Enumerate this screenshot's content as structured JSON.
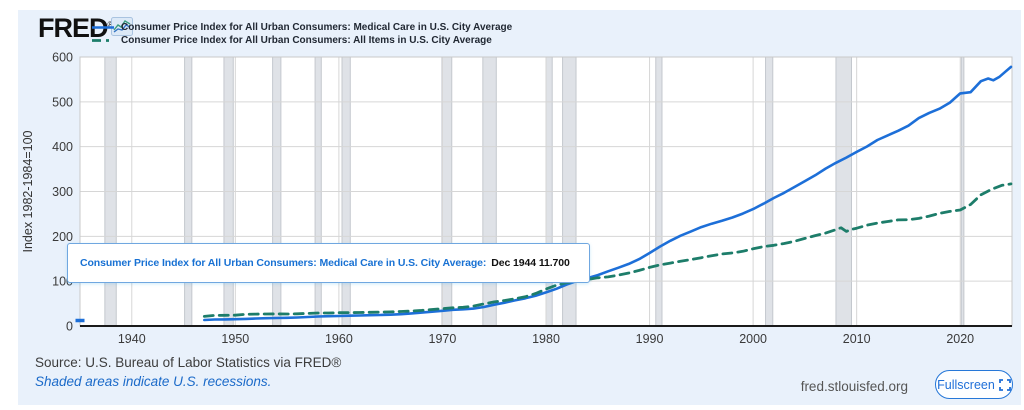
{
  "header": {
    "logo_text": "FRED",
    "logo_registered": "®",
    "legend": [
      {
        "label": "Consumer Price Index for All Urban Consumers: Medical Care in U.S. City Average",
        "color": "#1d6fd8",
        "style": "solid"
      },
      {
        "label": "Consumer Price Index for All Urban Consumers: All Items in U.S. City Average",
        "color": "#1d7d6a",
        "style": "dashed"
      }
    ]
  },
  "tooltip": {
    "series_label": "Consumer Price Index for All Urban Consumers: Medical Care in U.S. City Average:",
    "value_text": "Dec 1944 11.700"
  },
  "footer": {
    "source": "Source: U.S. Bureau of Labor Statistics via FRED®",
    "recession_note": "Shaded areas indicate U.S. recessions.",
    "site": "fred.stlouisfed.org",
    "fullscreen_label": "Fullscreen"
  },
  "colors": {
    "panel_bg": "#e9f1fb",
    "plot_bg": "#ffffff",
    "grid": "#d6d6d6",
    "plot_border": "#c9c9c9",
    "recession_band": "#dfe2e7",
    "recession_edge": "#c4c8ce",
    "axis": "#1a1a1a",
    "tick_text": "#3a3a3a",
    "medical_line": "#1d6fd8",
    "all_items_line": "#1d7d6a"
  },
  "chart_data": {
    "type": "line",
    "title": "",
    "xlabel": "",
    "ylabel": "Index 1982-1984=100",
    "xlim": [
      1935,
      2025
    ],
    "ylim": [
      0,
      600
    ],
    "xticks": [
      1940,
      1950,
      1960,
      1970,
      1980,
      1990,
      2000,
      2010,
      2020
    ],
    "yticks": [
      0,
      100,
      200,
      300,
      400,
      500,
      600
    ],
    "grid": true,
    "legend_position": "top-left",
    "hover_marker": {
      "x": 1935,
      "y": 11.7
    },
    "recessions": [
      [
        1937.4,
        1938.5
      ],
      [
        1945.1,
        1945.8
      ],
      [
        1948.9,
        1949.8
      ],
      [
        1953.6,
        1954.4
      ],
      [
        1957.7,
        1958.3
      ],
      [
        1960.3,
        1961.1
      ],
      [
        1969.95,
        1970.9
      ],
      [
        1973.9,
        1975.2
      ],
      [
        1980.0,
        1980.6
      ],
      [
        1981.6,
        1982.9
      ],
      [
        1990.6,
        1991.2
      ],
      [
        2001.2,
        2001.9
      ],
      [
        2008.0,
        2009.5
      ],
      [
        2020.1,
        2020.35
      ]
    ],
    "series": [
      {
        "name": "Consumer Price Index for All Urban Consumers: Medical Care in U.S. City Average",
        "color": "#1d6fd8",
        "dash": null,
        "points": [
          [
            1947,
            13.3
          ],
          [
            1948,
            14.4
          ],
          [
            1949,
            14.8
          ],
          [
            1950,
            15.1
          ],
          [
            1951,
            15.9
          ],
          [
            1952,
            16.7
          ],
          [
            1953,
            17.3
          ],
          [
            1954,
            17.8
          ],
          [
            1955,
            18.2
          ],
          [
            1956,
            18.9
          ],
          [
            1957,
            20.0
          ],
          [
            1958,
            21.1
          ],
          [
            1959,
            21.9
          ],
          [
            1960,
            22.3
          ],
          [
            1961,
            22.9
          ],
          [
            1962,
            23.5
          ],
          [
            1963,
            24.1
          ],
          [
            1964,
            24.6
          ],
          [
            1965,
            25.2
          ],
          [
            1966,
            26.3
          ],
          [
            1967,
            28.2
          ],
          [
            1968,
            29.9
          ],
          [
            1969,
            31.9
          ],
          [
            1970,
            34.0
          ],
          [
            1971,
            36.1
          ],
          [
            1972,
            37.3
          ],
          [
            1973,
            38.8
          ],
          [
            1974,
            42.4
          ],
          [
            1975,
            47.5
          ],
          [
            1976,
            52.0
          ],
          [
            1977,
            57.0
          ],
          [
            1978,
            61.8
          ],
          [
            1979,
            67.5
          ],
          [
            1980,
            74.9
          ],
          [
            1981,
            82.9
          ],
          [
            1982,
            92.5
          ],
          [
            1983,
            100.6
          ],
          [
            1984,
            106.8
          ],
          [
            1985,
            113.5
          ],
          [
            1986,
            122.0
          ],
          [
            1987,
            130.1
          ],
          [
            1988,
            138.6
          ],
          [
            1989,
            149.3
          ],
          [
            1990,
            162.8
          ],
          [
            1991,
            177.0
          ],
          [
            1992,
            190.1
          ],
          [
            1993,
            201.4
          ],
          [
            1994,
            211.0
          ],
          [
            1995,
            220.5
          ],
          [
            1996,
            228.2
          ],
          [
            1997,
            234.6
          ],
          [
            1998,
            242.1
          ],
          [
            1999,
            250.6
          ],
          [
            2000,
            260.8
          ],
          [
            2001,
            272.8
          ],
          [
            2002,
            285.6
          ],
          [
            2003,
            297.1
          ],
          [
            2004,
            310.1
          ],
          [
            2005,
            323.2
          ],
          [
            2006,
            336.2
          ],
          [
            2007,
            351.1
          ],
          [
            2008,
            364.1
          ],
          [
            2009,
            375.6
          ],
          [
            2010,
            388.4
          ],
          [
            2011,
            400.3
          ],
          [
            2012,
            414.9
          ],
          [
            2013,
            425.1
          ],
          [
            2014,
            435.3
          ],
          [
            2015,
            446.8
          ],
          [
            2016,
            463.7
          ],
          [
            2017,
            475.3
          ],
          [
            2018,
            484.7
          ],
          [
            2019,
            498.4
          ],
          [
            2020,
            518.9
          ],
          [
            2021,
            521.5
          ],
          [
            2022,
            546.0
          ],
          [
            2022.7,
            552.0
          ],
          [
            2023.2,
            548.0
          ],
          [
            2023.8,
            556.0
          ],
          [
            2024.3,
            566.0
          ],
          [
            2024.9,
            578.0
          ]
        ]
      },
      {
        "name": "Consumer Price Index for All Urban Consumers: All Items in U.S. City Average",
        "color": "#1d7d6a",
        "dash": "9 6",
        "points": [
          [
            1947,
            21.5
          ],
          [
            1948,
            23.7
          ],
          [
            1949,
            23.8
          ],
          [
            1950,
            24.1
          ],
          [
            1951,
            26.0
          ],
          [
            1952,
            26.5
          ],
          [
            1953,
            26.7
          ],
          [
            1954,
            26.9
          ],
          [
            1955,
            26.8
          ],
          [
            1956,
            27.2
          ],
          [
            1957,
            28.1
          ],
          [
            1958,
            28.9
          ],
          [
            1959,
            29.1
          ],
          [
            1960,
            29.6
          ],
          [
            1961,
            29.9
          ],
          [
            1962,
            30.2
          ],
          [
            1963,
            30.6
          ],
          [
            1964,
            31.0
          ],
          [
            1965,
            31.5
          ],
          [
            1966,
            32.4
          ],
          [
            1967,
            33.4
          ],
          [
            1968,
            34.8
          ],
          [
            1969,
            36.7
          ],
          [
            1970,
            38.8
          ],
          [
            1971,
            40.5
          ],
          [
            1972,
            41.8
          ],
          [
            1973,
            44.4
          ],
          [
            1974,
            49.3
          ],
          [
            1975,
            53.8
          ],
          [
            1976,
            56.9
          ],
          [
            1977,
            60.6
          ],
          [
            1978,
            65.2
          ],
          [
            1979,
            72.6
          ],
          [
            1980,
            82.4
          ],
          [
            1981,
            90.9
          ],
          [
            1982,
            96.5
          ],
          [
            1983,
            99.6
          ],
          [
            1984,
            103.9
          ],
          [
            1985,
            107.6
          ],
          [
            1986,
            109.6
          ],
          [
            1987,
            113.6
          ],
          [
            1988,
            118.3
          ],
          [
            1989,
            124.0
          ],
          [
            1990,
            130.7
          ],
          [
            1991,
            136.2
          ],
          [
            1992,
            140.3
          ],
          [
            1993,
            144.5
          ],
          [
            1994,
            148.2
          ],
          [
            1995,
            152.4
          ],
          [
            1996,
            156.9
          ],
          [
            1997,
            160.5
          ],
          [
            1998,
            163.0
          ],
          [
            1999,
            166.6
          ],
          [
            2000,
            172.2
          ],
          [
            2001,
            177.1
          ],
          [
            2002,
            179.9
          ],
          [
            2003,
            184.0
          ],
          [
            2004,
            188.9
          ],
          [
            2005,
            195.3
          ],
          [
            2006,
            201.6
          ],
          [
            2007,
            207.3
          ],
          [
            2008.5,
            219.1
          ],
          [
            2009,
            211.1
          ],
          [
            2009.5,
            215.4
          ],
          [
            2010,
            218.1
          ],
          [
            2011,
            224.9
          ],
          [
            2012,
            229.6
          ],
          [
            2013,
            233.0
          ],
          [
            2014,
            236.7
          ],
          [
            2015,
            237.0
          ],
          [
            2016,
            240.0
          ],
          [
            2017,
            245.1
          ],
          [
            2018,
            251.1
          ],
          [
            2019,
            255.7
          ],
          [
            2020,
            258.8
          ],
          [
            2021,
            271.0
          ],
          [
            2022,
            292.7
          ],
          [
            2023,
            304.7
          ],
          [
            2024,
            313.7
          ],
          [
            2024.9,
            317.0
          ]
        ]
      }
    ]
  }
}
